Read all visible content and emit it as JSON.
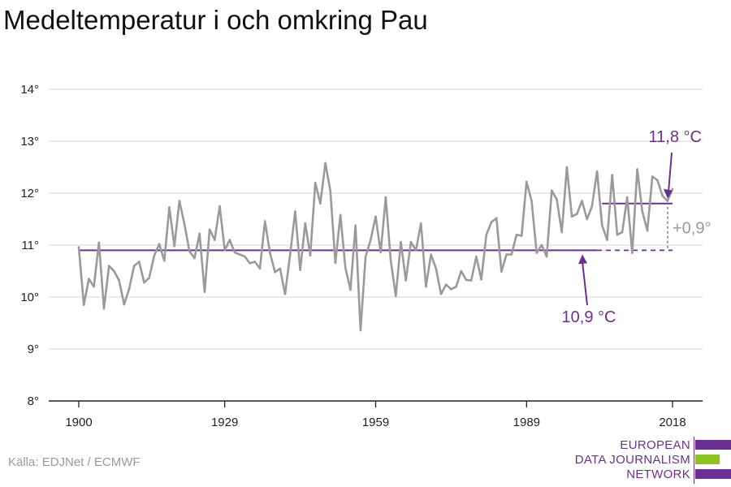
{
  "title": "Medeltemperatur i och omkring Pau",
  "source": "Källa: EDJNet / ECMWF",
  "logo": {
    "lines": [
      "EUROPEAN",
      "DATA JOURNALISM",
      "NETWORK"
    ]
  },
  "colors": {
    "series": "#9a9a9a",
    "accent": "#6b2f91",
    "logo_green": "#8fc31f",
    "grid": "#dddddd"
  },
  "chart_data": {
    "type": "line",
    "title": "Medeltemperatur i och omkring Pau",
    "xlabel": "",
    "ylabel": "",
    "xlim": [
      1900,
      2018
    ],
    "ylim": [
      8,
      14
    ],
    "x_ticks": [
      1900,
      1929,
      1959,
      1989,
      2018
    ],
    "y_ticks": [
      8,
      9,
      10,
      11,
      12,
      13,
      14
    ],
    "y_tick_labels": [
      "8°",
      "9°",
      "10°",
      "11°",
      "12°",
      "13°",
      "14°"
    ],
    "grid": true,
    "x": [
      1900,
      1901,
      1902,
      1903,
      1904,
      1905,
      1906,
      1907,
      1908,
      1909,
      1910,
      1911,
      1912,
      1913,
      1914,
      1915,
      1916,
      1917,
      1918,
      1919,
      1920,
      1921,
      1922,
      1923,
      1924,
      1925,
      1926,
      1927,
      1928,
      1929,
      1930,
      1931,
      1932,
      1933,
      1934,
      1935,
      1936,
      1937,
      1938,
      1939,
      1940,
      1941,
      1942,
      1943,
      1944,
      1945,
      1946,
      1947,
      1948,
      1949,
      1950,
      1951,
      1952,
      1953,
      1954,
      1955,
      1956,
      1957,
      1958,
      1959,
      1960,
      1961,
      1962,
      1963,
      1964,
      1965,
      1966,
      1967,
      1968,
      1969,
      1970,
      1971,
      1972,
      1973,
      1974,
      1975,
      1976,
      1977,
      1978,
      1979,
      1980,
      1981,
      1982,
      1983,
      1984,
      1985,
      1986,
      1987,
      1988,
      1989,
      1990,
      1991,
      1992,
      1993,
      1994,
      1995,
      1996,
      1997,
      1998,
      1999,
      2000,
      2001,
      2002,
      2003,
      2004,
      2005,
      2006,
      2007,
      2008,
      2009,
      2010,
      2011,
      2012,
      2013,
      2014,
      2015,
      2016,
      2017,
      2018
    ],
    "series": [
      {
        "values": [
          10.96,
          9.85,
          10.35,
          10.2,
          11.05,
          9.78,
          10.6,
          10.5,
          10.32,
          9.86,
          10.15,
          10.6,
          10.68,
          10.28,
          10.37,
          10.8,
          11.02,
          10.7,
          11.73,
          10.98,
          11.85,
          11.4,
          10.88,
          10.75,
          11.22,
          10.1,
          11.3,
          11.1,
          11.75,
          10.9,
          11.1,
          10.86,
          10.82,
          10.78,
          10.65,
          10.68,
          10.55,
          11.46,
          10.85,
          10.48,
          10.55,
          10.06,
          10.82,
          11.65,
          10.52,
          11.42,
          10.8,
          12.2,
          11.8,
          12.58,
          12.05,
          10.66,
          11.58,
          10.56,
          10.14,
          11.38,
          9.36,
          10.78,
          11.1,
          11.55,
          10.86,
          11.92,
          10.7,
          10.02,
          11.06,
          10.32,
          11.06,
          10.9,
          11.42,
          10.2,
          10.82,
          10.55,
          10.06,
          10.24,
          10.15,
          10.2,
          10.5,
          10.33,
          10.32,
          10.78,
          10.34,
          11.2,
          11.44,
          11.52,
          10.49,
          10.82,
          10.82,
          11.2,
          11.18,
          12.22,
          11.85,
          10.85,
          11.0,
          10.78,
          12.05,
          11.88,
          11.25,
          12.5,
          11.55,
          11.6,
          11.85,
          11.5,
          11.75,
          12.42,
          11.38,
          11.1,
          12.35,
          11.2,
          11.25,
          11.92,
          10.85,
          12.46,
          11.65,
          11.28,
          12.32,
          12.25,
          11.95,
          11.85,
          12.08
        ]
      }
    ],
    "reference_lines": [
      {
        "label": "10,9 °C",
        "value": 10.9,
        "from": 1900,
        "to": 2018,
        "solid_to": 2003
      },
      {
        "label": "11,8 °C",
        "value": 11.8,
        "from": 2004,
        "to": 2018
      }
    ],
    "difference_label": "+0,9°"
  }
}
